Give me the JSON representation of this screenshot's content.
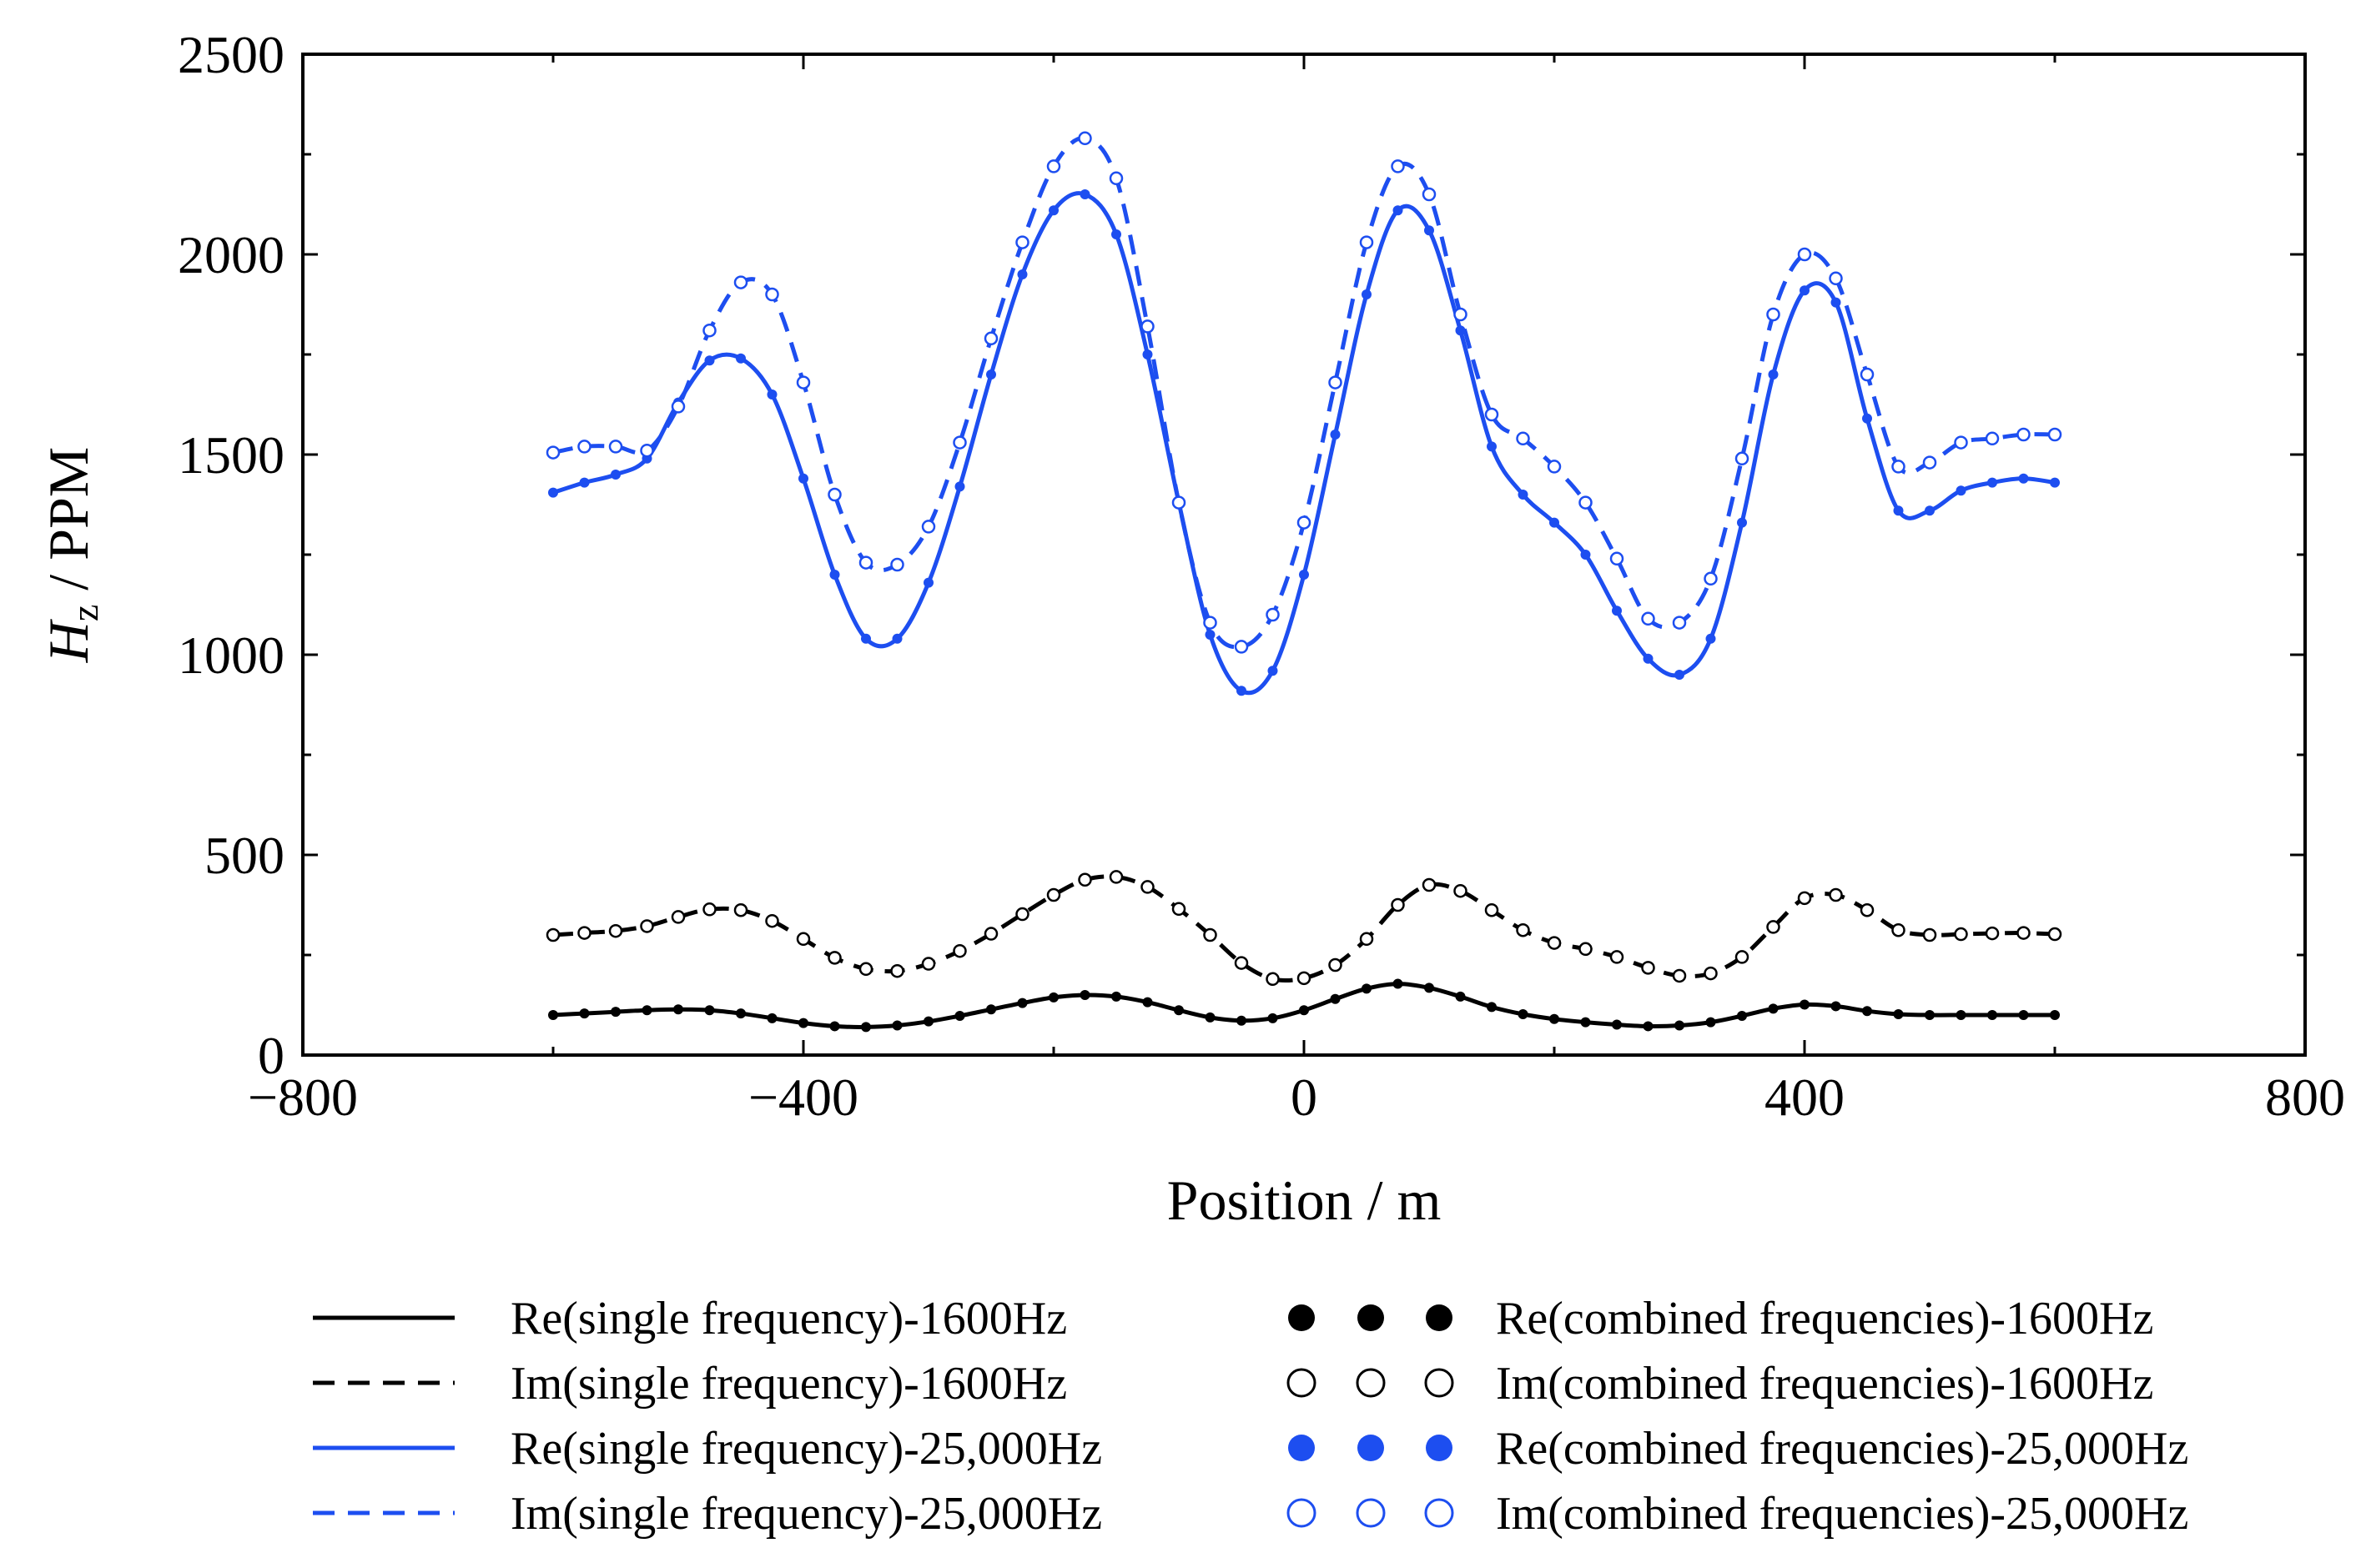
{
  "chart_data": {
    "type": "line",
    "title": "",
    "xlabel": "Position / m",
    "ylabel": "Hz / PPM",
    "ylabel_main": "H",
    "ylabel_sub": "z",
    "ylabel_rest": " / PPM",
    "xlim": [
      -800,
      800
    ],
    "ylim": [
      0,
      2500
    ],
    "xticks": [
      -800,
      -400,
      0,
      400,
      800
    ],
    "xtick_labels": [
      "−800",
      "−400",
      "0",
      "400",
      "800"
    ],
    "yticks": [
      0,
      500,
      1000,
      1500,
      2000,
      2500
    ],
    "ytick_labels": [
      "0",
      "500",
      "1000",
      "1500",
      "2000",
      "2500"
    ],
    "grid": false,
    "legend_position": "bottom",
    "x": [
      -600,
      -575,
      -550,
      -525,
      -500,
      -475,
      -450,
      -425,
      -400,
      -375,
      -350,
      -325,
      -300,
      -275,
      -250,
      -225,
      -200,
      -175,
      -150,
      -125,
      -100,
      -75,
      -50,
      -25,
      0,
      25,
      50,
      75,
      100,
      125,
      150,
      175,
      200,
      225,
      250,
      275,
      300,
      325,
      350,
      375,
      400,
      425,
      450,
      475,
      500,
      525,
      550,
      575,
      600
    ],
    "series": [
      {
        "name": "Re(single frequency)-1600Hz",
        "color": "#000000",
        "dashed": false,
        "values": [
          100,
          104,
          108,
          112,
          114,
          112,
          104,
          92,
          80,
          72,
          70,
          74,
          84,
          98,
          114,
          130,
          144,
          150,
          146,
          132,
          112,
          94,
          86,
          92,
          112,
          140,
          166,
          178,
          168,
          146,
          120,
          102,
          90,
          82,
          76,
          72,
          74,
          82,
          98,
          116,
          126,
          122,
          110,
          102,
          100,
          100,
          100,
          100,
          100
        ]
      },
      {
        "name": "Im(single frequency)-1600Hz",
        "color": "#000000",
        "dashed": true,
        "values": [
          300,
          305,
          310,
          322,
          345,
          364,
          362,
          335,
          290,
          243,
          215,
          210,
          228,
          260,
          303,
          352,
          400,
          438,
          445,
          420,
          365,
          300,
          230,
          190,
          192,
          225,
          290,
          375,
          425,
          410,
          362,
          312,
          280,
          265,
          245,
          218,
          198,
          204,
          245,
          320,
          392,
          400,
          362,
          312,
          300,
          302,
          304,
          305,
          302
        ]
      },
      {
        "name": "Re(single frequency)-25,000Hz",
        "color": "#1d4ef0",
        "dashed": false,
        "values": [
          1405,
          1430,
          1450,
          1490,
          1630,
          1735,
          1740,
          1650,
          1440,
          1200,
          1040,
          1040,
          1180,
          1420,
          1700,
          1950,
          2110,
          2150,
          2050,
          1750,
          1380,
          1050,
          910,
          960,
          1200,
          1550,
          1900,
          2110,
          2060,
          1810,
          1520,
          1400,
          1330,
          1250,
          1110,
          990,
          950,
          1040,
          1330,
          1700,
          1910,
          1880,
          1590,
          1360,
          1360,
          1410,
          1430,
          1440,
          1430
        ]
      },
      {
        "name": "Im(single frequency)-25,000Hz",
        "color": "#1d4ef0",
        "dashed": true,
        "values": [
          1505,
          1520,
          1520,
          1510,
          1620,
          1810,
          1930,
          1900,
          1680,
          1400,
          1230,
          1225,
          1320,
          1530,
          1790,
          2030,
          2220,
          2290,
          2190,
          1820,
          1380,
          1080,
          1020,
          1100,
          1330,
          1680,
          2030,
          2220,
          2150,
          1850,
          1600,
          1540,
          1470,
          1380,
          1240,
          1090,
          1080,
          1190,
          1490,
          1850,
          2000,
          1940,
          1700,
          1470,
          1480,
          1530,
          1540,
          1550,
          1550
        ]
      }
    ],
    "markers": [
      {
        "name": "Re(combined frequencies)-1600Hz",
        "of": 0,
        "color": "#000000",
        "filled": true
      },
      {
        "name": "Im(combined frequencies)-1600Hz",
        "of": 1,
        "color": "#000000",
        "filled": false
      },
      {
        "name": "Re(combined frequencies)-25,000Hz",
        "of": 2,
        "color": "#1d4ef0",
        "filled": true
      },
      {
        "name": "Im(combined frequencies)-25,000Hz",
        "of": 3,
        "color": "#1d4ef0",
        "filled": false
      }
    ]
  }
}
